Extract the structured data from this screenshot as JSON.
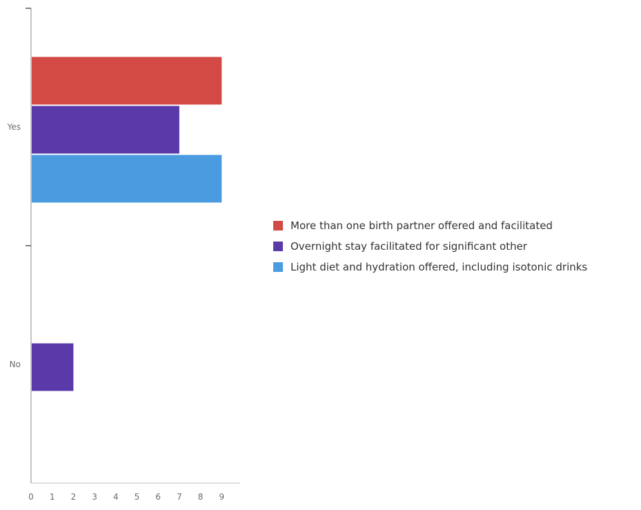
{
  "chart_data": {
    "type": "bar",
    "orientation": "horizontal",
    "categories": [
      "Yes",
      "No"
    ],
    "series": [
      {
        "name": "More than one birth partner offered and facilitated",
        "color": "#d24a43",
        "values": [
          9,
          0
        ]
      },
      {
        "name": "Overnight stay facilitated for significant other",
        "color": "#5a3aa8",
        "values": [
          7,
          2
        ]
      },
      {
        "name": "Light diet and hydration offered, including isotonic drinks",
        "color": "#4a9be0",
        "values": [
          9,
          0
        ]
      }
    ],
    "xticks": [
      "0",
      "1",
      "2",
      "3",
      "4",
      "5",
      "6",
      "7",
      "8",
      "9"
    ],
    "xlim": [
      0,
      10
    ],
    "title": "",
    "xlabel": "",
    "ylabel": "",
    "legend_position": "right",
    "grid": false
  }
}
